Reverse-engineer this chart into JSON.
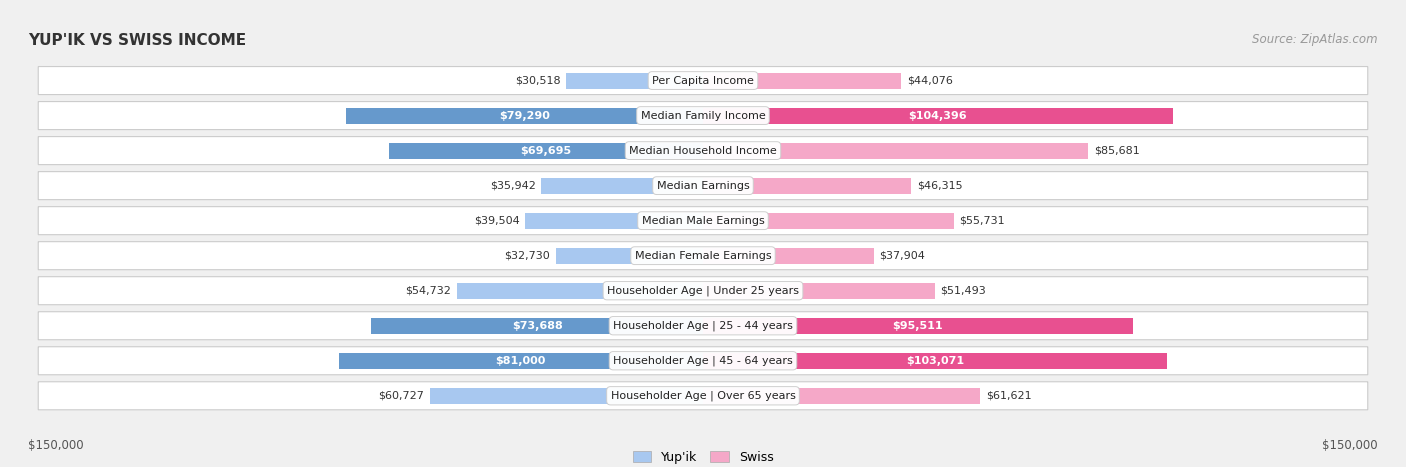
{
  "title": "YUP'IK VS SWISS INCOME",
  "source": "Source: ZipAtlas.com",
  "categories": [
    "Per Capita Income",
    "Median Family Income",
    "Median Household Income",
    "Median Earnings",
    "Median Male Earnings",
    "Median Female Earnings",
    "Householder Age | Under 25 years",
    "Householder Age | 25 - 44 years",
    "Householder Age | 45 - 64 years",
    "Householder Age | Over 65 years"
  ],
  "yupik_values": [
    30518,
    79290,
    69695,
    35942,
    39504,
    32730,
    54732,
    73688,
    81000,
    60727
  ],
  "swiss_values": [
    44076,
    104396,
    85681,
    46315,
    55731,
    37904,
    51493,
    95511,
    103071,
    61621
  ],
  "yupik_labels": [
    "$30,518",
    "$79,290",
    "$69,695",
    "$35,942",
    "$39,504",
    "$32,730",
    "$54,732",
    "$73,688",
    "$81,000",
    "$60,727"
  ],
  "swiss_labels": [
    "$44,076",
    "$104,396",
    "$85,681",
    "$46,315",
    "$55,731",
    "$37,904",
    "$51,493",
    "$95,511",
    "$103,071",
    "$61,621"
  ],
  "yupik_color_light": "#A8C8F0",
  "yupik_color_dark": "#6699CC",
  "swiss_color_light": "#F5A8C8",
  "swiss_color_dark": "#E85090",
  "max_value": 150000,
  "bg_color": "#f0f0f0",
  "row_bg_color": "#ffffff",
  "bottom_labels": [
    "$150,000",
    "$150,000"
  ],
  "legend_yupik": "Yup'ik",
  "legend_swiss": "Swiss",
  "yupik_highlight": [
    1,
    2,
    7,
    8
  ],
  "swiss_highlight": [
    1,
    7,
    8
  ]
}
